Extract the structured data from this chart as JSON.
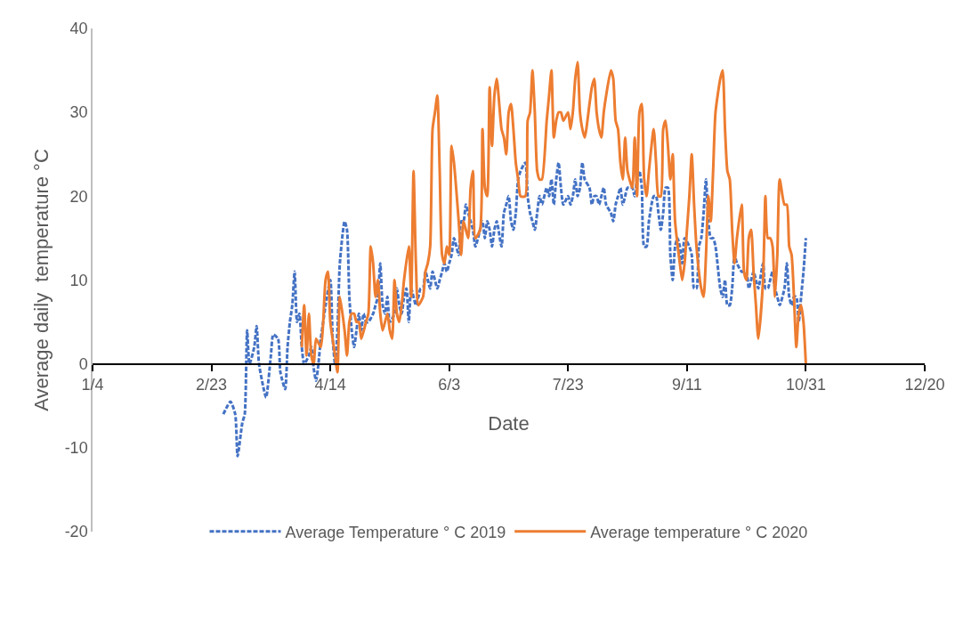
{
  "chart_data": {
    "type": "line",
    "xlabel": "Date",
    "ylabel": "Average daily  temperature °C",
    "xlim": [
      "--01-04",
      "--12-20"
    ],
    "xticks": [
      {
        "value": "--01-04",
        "label": "1/4"
      },
      {
        "value": "--02-23",
        "label": "2/23"
      },
      {
        "value": "--04-14",
        "label": "4/14"
      },
      {
        "value": "--06-03",
        "label": "6/3"
      },
      {
        "value": "--07-23",
        "label": "7/23"
      },
      {
        "value": "--09-11",
        "label": "9/11"
      },
      {
        "value": "--10-31",
        "label": "10/31"
      },
      {
        "value": "--12-20",
        "label": "12/20"
      }
    ],
    "ylim": [
      -20,
      40
    ],
    "yticks": [
      -20,
      -10,
      0,
      10,
      20,
      30,
      40
    ],
    "legend": "bottom",
    "marker": "none",
    "series": [
      {
        "name": "Average Temperature ° C 2019",
        "color": "#4472c4",
        "line_style": "dashed",
        "x": [
          "--02-28",
          "--03-03",
          "--03-05",
          "--03-06",
          "--03-08",
          "--03-09",
          "--03-10",
          "--03-11",
          "--03-13",
          "--03-14",
          "--03-15",
          "--03-17",
          "--03-18",
          "--03-20",
          "--03-21",
          "--03-23",
          "--03-24",
          "--03-26",
          "--03-27",
          "--03-28",
          "--03-29",
          "--03-30",
          "--03-31",
          "--04-01",
          "--04-02",
          "--04-03",
          "--04-05",
          "--04-06",
          "--04-07",
          "--04-08",
          "--04-09",
          "--04-10",
          "--04-11",
          "--04-12",
          "--04-14",
          "--04-15",
          "--04-16",
          "--04-17",
          "--04-18",
          "--04-20",
          "--04-21",
          "--04-22",
          "--04-23",
          "--04-24",
          "--04-25",
          "--04-26",
          "--04-27",
          "--04-28",
          "--04-29",
          "--04-30",
          "--05-02",
          "--05-03",
          "--05-04",
          "--05-05",
          "--05-06",
          "--05-07",
          "--05-08",
          "--05-09",
          "--05-11",
          "--05-12",
          "--05-13",
          "--05-14",
          "--05-15",
          "--05-16",
          "--05-17",
          "--05-18",
          "--05-20",
          "--05-21",
          "--05-22",
          "--05-23",
          "--05-24",
          "--05-25",
          "--05-26",
          "--05-27",
          "--05-29",
          "--05-30",
          "--05-31",
          "--06-01",
          "--06-02",
          "--06-03",
          "--06-04",
          "--06-05",
          "--06-07",
          "--06-08",
          "--06-09",
          "--06-10",
          "--06-11",
          "--06-12",
          "--06-13",
          "--06-14",
          "--06-16",
          "--06-17",
          "--06-18",
          "--06-19",
          "--06-20",
          "--06-21",
          "--06-22",
          "--06-23",
          "--06-25",
          "--06-26",
          "--06-27",
          "--06-28",
          "--06-29",
          "--06-30",
          "--07-01",
          "--07-02",
          "--07-03",
          "--07-05",
          "--07-06",
          "--07-07",
          "--07-08",
          "--07-09",
          "--07-10",
          "--07-11",
          "--07-12",
          "--07-14",
          "--07-15",
          "--07-16",
          "--07-17",
          "--07-18",
          "--07-19",
          "--07-20",
          "--07-21",
          "--07-23",
          "--07-24",
          "--07-25",
          "--07-26",
          "--07-27",
          "--07-28",
          "--07-29",
          "--07-30",
          "--08-01",
          "--08-02",
          "--08-03",
          "--08-04",
          "--08-05",
          "--08-06",
          "--08-07",
          "--08-08",
          "--08-10",
          "--08-11",
          "--08-12",
          "--08-13",
          "--08-14",
          "--08-15",
          "--08-16",
          "--08-17",
          "--08-19",
          "--08-20",
          "--08-21",
          "--08-22",
          "--08-23",
          "--08-24",
          "--08-25",
          "--08-26",
          "--08-28",
          "--08-29",
          "--08-30",
          "--08-31",
          "--09-01",
          "--09-02",
          "--09-03",
          "--09-04",
          "--09-05",
          "--09-06",
          "--09-07",
          "--09-08",
          "--09-09",
          "--09-10",
          "--09-12",
          "--09-13",
          "--09-14",
          "--09-15",
          "--09-16",
          "--09-17",
          "--09-18",
          "--09-19",
          "--09-20",
          "--09-21",
          "--09-22",
          "--09-23",
          "--09-25",
          "--09-26",
          "--09-27",
          "--09-28",
          "--09-29",
          "--09-30",
          "--10-01",
          "--10-02",
          "--10-04",
          "--10-05",
          "--10-06",
          "--10-07",
          "--10-08",
          "--10-09",
          "--10-10",
          "--10-11",
          "--10-13",
          "--10-14",
          "--10-15",
          "--10-16",
          "--10-17",
          "--10-18",
          "--10-19",
          "--10-20",
          "--10-22",
          "--10-23",
          "--10-24",
          "--10-25",
          "--10-26",
          "--10-27",
          "--10-28",
          "--10-29",
          "--10-30",
          "--10-31"
        ],
        "values": [
          -6,
          -4.5,
          -6,
          -11,
          -7,
          -6,
          4,
          0,
          2,
          4.5,
          0,
          -3,
          -4,
          1,
          3.5,
          3,
          -1,
          -3,
          2,
          5,
          7,
          11,
          5,
          6,
          2,
          0,
          1,
          2,
          -0.5,
          -2,
          0,
          3,
          5,
          7,
          10,
          3,
          0,
          4,
          12,
          17,
          16,
          8,
          4,
          2,
          4,
          6,
          4,
          6,
          5,
          5,
          6,
          7,
          8,
          12,
          7,
          6,
          8,
          5,
          6,
          9,
          7,
          6,
          8,
          9,
          5,
          9,
          7,
          8,
          9,
          9,
          11,
          10,
          9,
          11,
          9,
          10,
          11,
          12,
          11,
          12,
          13,
          15,
          13,
          17,
          17,
          19,
          18,
          17,
          16,
          14,
          16,
          17,
          15,
          17,
          16,
          14,
          16,
          17,
          14,
          18,
          19,
          20,
          17,
          16,
          18,
          22,
          23,
          24,
          20,
          18,
          17,
          16,
          18,
          20,
          19,
          21,
          20,
          22,
          19,
          22,
          24,
          21,
          19,
          20,
          19,
          20,
          22,
          20,
          21,
          24,
          22,
          21,
          19,
          20,
          20,
          19,
          20,
          21,
          19,
          18,
          17,
          19,
          20,
          21,
          19,
          20,
          21,
          21,
          20,
          22,
          23,
          21,
          14,
          14,
          17,
          20,
          20,
          18,
          16,
          18,
          21,
          21,
          13,
          10,
          14,
          15,
          14,
          12,
          15,
          14,
          13,
          9,
          9,
          14,
          15,
          18,
          22,
          17,
          15,
          15,
          14,
          9,
          8,
          10,
          7,
          7,
          9,
          13,
          12,
          11,
          11,
          11,
          9,
          10,
          11,
          10,
          9,
          12,
          9,
          9,
          10,
          11,
          9,
          8,
          7,
          9,
          12,
          8,
          7,
          8,
          8,
          5,
          8,
          11,
          15
        ]
      },
      {
        "name": "Average temperature ° C 2020",
        "color": "#ed7d31",
        "line_style": "solid",
        "x": [
          "--04-02",
          "--04-03",
          "--04-04",
          "--04-05",
          "--04-06",
          "--04-07",
          "--04-08",
          "--04-10",
          "--04-11",
          "--04-12",
          "--04-13",
          "--04-14",
          "--04-16",
          "--04-17",
          "--04-18",
          "--04-20",
          "--04-21",
          "--04-22",
          "--04-23",
          "--04-24",
          "--04-25",
          "--04-26",
          "--04-27",
          "--04-29",
          "--04-30",
          "--05-01",
          "--05-02",
          "--05-03",
          "--05-04",
          "--05-05",
          "--05-06",
          "--05-08",
          "--05-09",
          "--05-10",
          "--05-11",
          "--05-12",
          "--05-13",
          "--05-14",
          "--05-15",
          "--05-17",
          "--05-18",
          "--05-19",
          "--05-20",
          "--05-21",
          "--05-23",
          "--05-24",
          "--05-25",
          "--05-26",
          "--05-27",
          "--05-28",
          "--05-29",
          "--05-30",
          "--05-31",
          "--06-01",
          "--06-02",
          "--06-03",
          "--06-04",
          "--06-05",
          "--06-07",
          "--06-08",
          "--06-09",
          "--06-10",
          "--06-11",
          "--06-12",
          "--06-13",
          "--06-14",
          "--06-16",
          "--06-17",
          "--06-18",
          "--06-19",
          "--06-20",
          "--06-21",
          "--06-22",
          "--06-23",
          "--06-25",
          "--06-26",
          "--06-27",
          "--06-28",
          "--06-29",
          "--06-30",
          "--07-01",
          "--07-02",
          "--07-03",
          "--07-05",
          "--07-06",
          "--07-07",
          "--07-08",
          "--07-09",
          "--07-10",
          "--07-11",
          "--07-12",
          "--07-14",
          "--07-15",
          "--07-16",
          "--07-17",
          "--07-18",
          "--07-19",
          "--07-20",
          "--07-21",
          "--07-23",
          "--07-24",
          "--07-25",
          "--07-26",
          "--07-27",
          "--07-28",
          "--07-29",
          "--07-30",
          "--08-01",
          "--08-02",
          "--08-03",
          "--08-04",
          "--08-05",
          "--08-06",
          "--08-07",
          "--08-08",
          "--08-10",
          "--08-11",
          "--08-12",
          "--08-13",
          "--08-14",
          "--08-15",
          "--08-16",
          "--08-17",
          "--08-19",
          "--08-20",
          "--08-21",
          "--08-22",
          "--08-23",
          "--08-24",
          "--08-25",
          "--08-26",
          "--08-28",
          "--08-29",
          "--08-30",
          "--08-31",
          "--09-01",
          "--09-02",
          "--09-03",
          "--09-04",
          "--09-05",
          "--09-06",
          "--09-08",
          "--09-09",
          "--09-10",
          "--09-11",
          "--09-12",
          "--09-13",
          "--09-14",
          "--09-15",
          "--09-17",
          "--09-18",
          "--09-19",
          "--09-20",
          "--09-21",
          "--09-22",
          "--09-23",
          "--09-25",
          "--09-26",
          "--09-27",
          "--09-28",
          "--09-29",
          "--09-30",
          "--10-01",
          "--10-02",
          "--10-04",
          "--10-05",
          "--10-06",
          "--10-07",
          "--10-08",
          "--10-09",
          "--10-10",
          "--10-11",
          "--10-13",
          "--10-14",
          "--10-15",
          "--10-16",
          "--10-17",
          "--10-18",
          "--10-19",
          "--10-20",
          "--10-22",
          "--10-23",
          "--10-24",
          "--10-25",
          "--10-26",
          "--10-27",
          "--10-28",
          "--10-29",
          "--10-30",
          "--10-31"
        ],
        "values": [
          2,
          7,
          1,
          6,
          1,
          0,
          3,
          2,
          5,
          10,
          11,
          5,
          1,
          -1,
          8,
          4,
          1,
          5,
          6,
          6,
          5,
          5,
          3,
          5,
          6,
          14,
          12,
          8,
          10,
          6,
          4,
          6,
          4,
          3,
          10,
          6,
          5,
          7,
          10,
          14,
          8,
          23,
          12,
          7,
          8,
          11,
          12,
          14,
          28,
          30,
          32,
          23,
          13,
          12,
          14,
          13,
          26,
          24,
          17,
          13,
          17,
          16,
          15,
          21,
          23,
          15,
          16,
          28,
          21,
          20,
          33,
          26,
          32,
          34,
          28,
          27,
          25,
          30,
          31,
          28,
          24,
          22,
          20,
          20,
          29,
          30,
          35,
          30,
          23,
          22,
          22,
          29,
          32,
          35,
          27,
          29,
          30,
          30,
          29,
          30,
          28,
          30,
          34,
          36,
          30,
          28,
          27,
          31,
          33,
          34,
          30,
          28,
          27,
          30,
          32,
          35,
          34,
          29,
          28,
          24,
          22,
          27,
          23,
          21,
          27,
          20,
          30,
          31,
          22,
          20,
          23,
          28,
          24,
          20,
          20,
          28,
          29,
          26,
          22,
          25,
          17,
          12,
          10,
          12,
          16,
          20,
          25,
          19,
          14,
          9,
          8,
          13,
          20,
          17,
          23,
          30,
          34,
          35,
          28,
          23,
          22,
          16,
          12,
          15,
          19,
          11,
          10,
          15,
          16,
          11,
          7,
          3,
          10,
          20,
          15,
          15,
          14,
          8,
          13,
          22,
          19,
          19,
          14,
          13,
          8,
          2,
          6,
          7,
          5,
          0
        ]
      }
    ]
  }
}
